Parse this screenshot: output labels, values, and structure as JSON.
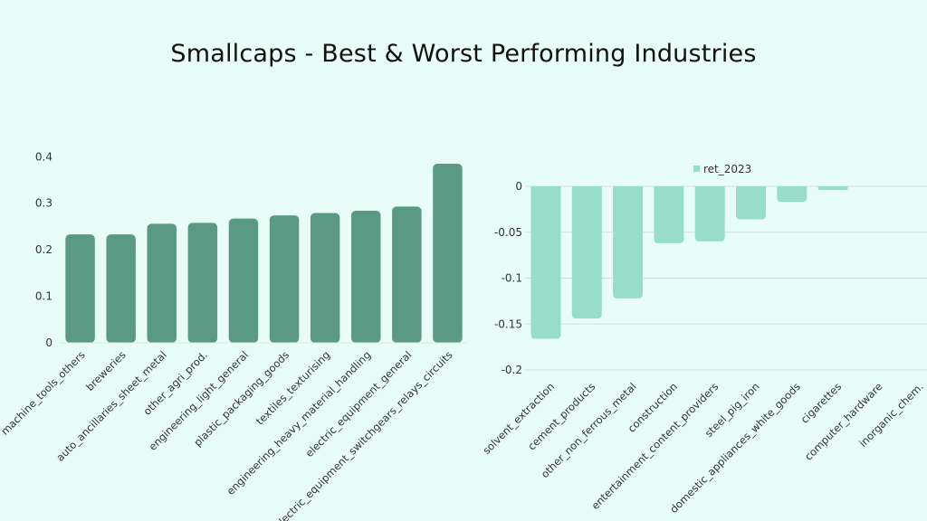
{
  "page": {
    "title": "Smallcaps - Best & Worst Performing Industries"
  },
  "chart_data": [
    {
      "type": "bar",
      "title": "",
      "color": "#5a9a85",
      "categories": [
        "machine_tools_others",
        "breweries",
        "auto_ancillaries_sheet_metal",
        "other_agri_prod.",
        "engineering_light_general",
        "plastic_packaging_goods",
        "textiles_texturising",
        "engineering_heavy_material_handling",
        "electric_equipment_general",
        "electric_equipment_switchgears_relays_circuits"
      ],
      "values": [
        0.233,
        0.233,
        0.256,
        0.258,
        0.267,
        0.274,
        0.279,
        0.284,
        0.293,
        0.385
      ],
      "yticks": [
        0,
        0.1,
        0.2,
        0.3,
        0.4
      ],
      "ylim": [
        0,
        0.42
      ],
      "grid": false,
      "legend": null
    },
    {
      "type": "bar",
      "title": "",
      "color": "#97ddc9",
      "series_name": "ret_2023",
      "legend": "top-center",
      "categories": [
        "solvent_extraction",
        "cement_products",
        "other_non_ferrous_metal",
        "construction",
        "entertainment_content_providers",
        "steel_pig_iron",
        "domestic_appliances_white_goods",
        "cigarettes",
        "computer_hardware",
        "inorganic_chem."
      ],
      "values": [
        -0.166,
        -0.144,
        -0.122,
        -0.062,
        -0.06,
        -0.036,
        -0.017,
        -0.004,
        0,
        0
      ],
      "yticks": [
        0,
        -0.05,
        -0.1,
        -0.15,
        -0.2
      ],
      "ylim": [
        -0.2,
        0
      ],
      "grid": true
    }
  ]
}
